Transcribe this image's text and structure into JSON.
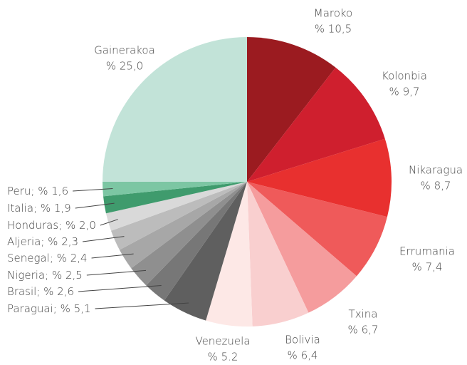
{
  "chart_data": {
    "type": "pie",
    "categories": [
      "Maroko",
      "Kolonbia",
      "Nikaragua",
      "Errumania",
      "Txina",
      "Bolivia",
      "Venezuela",
      "Paraguai",
      "Brasil",
      "Nigeria",
      "Senegal",
      "Aljeria",
      "Honduras",
      "Italia",
      "Peru",
      "Gainerakoa"
    ],
    "values": [
      10.5,
      9.7,
      8.7,
      7.4,
      6.7,
      6.4,
      5.2,
      5.1,
      2.6,
      2.5,
      2.4,
      2.3,
      2.0,
      1.9,
      1.6,
      25.0
    ],
    "value_labels": [
      "% 10,5",
      "% 9,7",
      "% 8,7",
      "% 7,4",
      "% 6,7",
      "% 6,4",
      "% 5.2",
      "; % 5,1",
      "; % 2,6",
      "; % 2,5",
      "; % 2,4",
      "; % 2,3",
      "; % 2,0",
      "; % 1,9",
      "; % 1,6",
      "% 25,0"
    ],
    "colors": [
      "#9b1b20",
      "#cf1f2e",
      "#e8302f",
      "#ef5a5a",
      "#f59c9d",
      "#f9cfcf",
      "#fde8e6",
      "#5f5f5f",
      "#777777",
      "#8f8f8f",
      "#a7a7a7",
      "#bcbcbc",
      "#d9d9d9",
      "#3f9b6d",
      "#7cc6a3",
      "#c2e3d8"
    ]
  }
}
